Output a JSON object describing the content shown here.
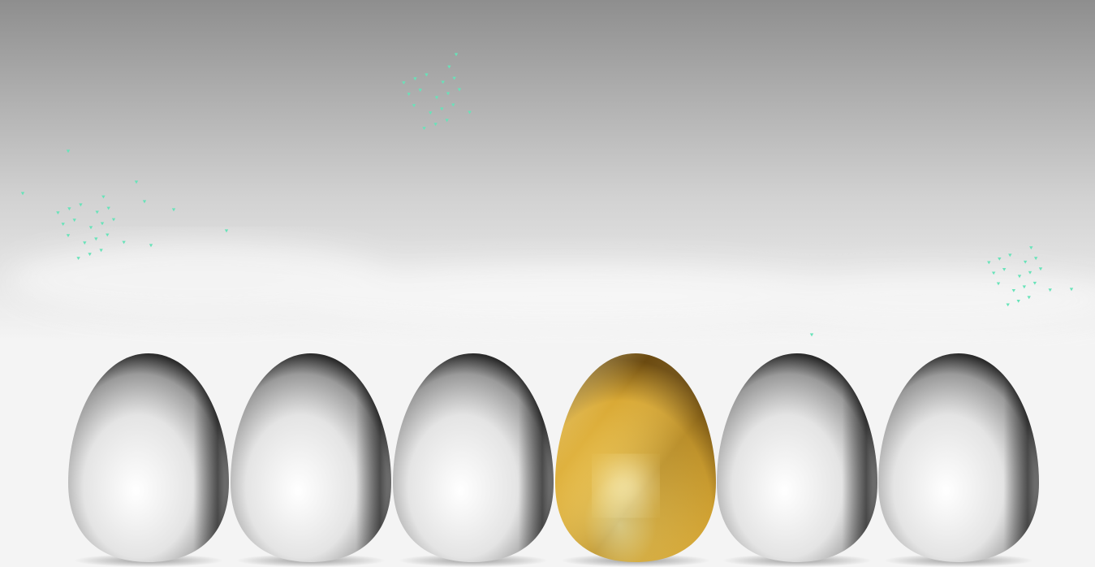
{
  "scene": {
    "description_alt": "",
    "background": {
      "top_color": "#8e8e8e",
      "mid_color": "#d2d2d2",
      "bottom_color": "#f4f4f4"
    },
    "accent_color": "#67e3b9",
    "eggs": [
      {
        "name": "white-egg-1",
        "finish": "white"
      },
      {
        "name": "white-egg-2",
        "finish": "white"
      },
      {
        "name": "white-egg-3",
        "finish": "white"
      },
      {
        "name": "golden-egg",
        "finish": "gold"
      },
      {
        "name": "white-egg-4",
        "finish": "white"
      },
      {
        "name": "white-egg-5",
        "finish": "white"
      }
    ],
    "palette": {
      "white_highlight": "#ffffff",
      "white_mid": "#e4e4e4",
      "white_shadow": "#2a2a2a",
      "gold_highlight": "#fff3a8",
      "gold_mid": "#d9a935",
      "gold_shadow": "#6b4a10"
    }
  }
}
